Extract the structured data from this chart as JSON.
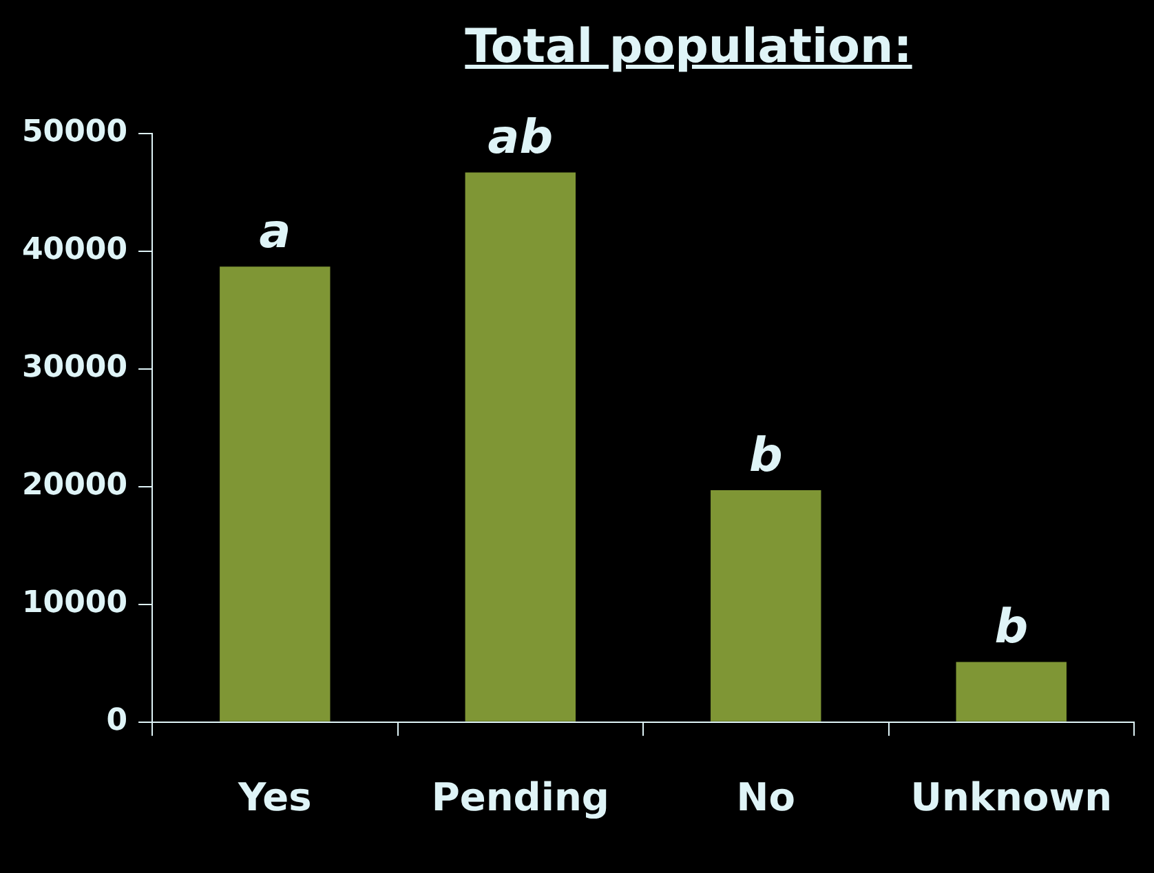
{
  "chart_data": {
    "type": "bar",
    "title": "Total population:",
    "categories": [
      "Yes",
      "Pending",
      "No",
      "Unknown"
    ],
    "values": [
      38700,
      46700,
      19700,
      5100
    ],
    "color": "#7f9635",
    "ylim": [
      0,
      50000
    ],
    "yticks": [
      0,
      10000,
      20000,
      30000,
      40000,
      50000
    ],
    "grid": false,
    "annotations": [
      {
        "text": "a",
        "x": "Yes",
        "y": 38700
      },
      {
        "text": "ab",
        "x": "Pending",
        "y": 46700
      },
      {
        "text": "b",
        "x": "No",
        "y": 19700
      },
      {
        "text": "b",
        "x": "Unknown",
        "y": 5100
      }
    ]
  }
}
